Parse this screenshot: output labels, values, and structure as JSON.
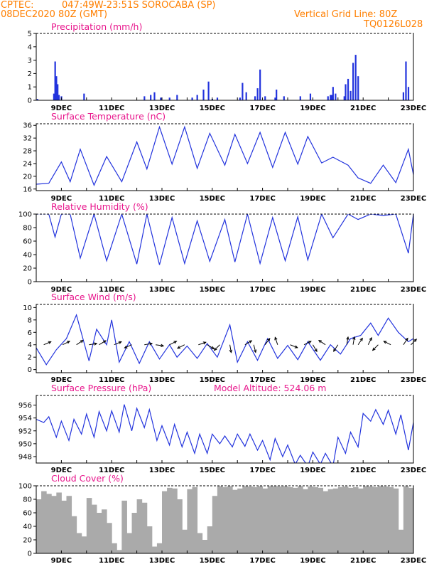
{
  "header": {
    "source": "CPTEC:",
    "location": "047:49W-23:51S   SOROCABA (SP)",
    "run": "08DEC2020 80Z (GMT)",
    "grid_line": "Vertical Grid Line: 80Z",
    "code": "TQ0126L028"
  },
  "x_axis": {
    "labels": [
      "9DEC",
      "11DEC",
      "13DEC",
      "15DEC",
      "17DEC",
      "19DEC",
      "21DEC",
      "23DEC"
    ],
    "label_days": [
      9,
      11,
      13,
      15,
      17,
      19,
      21,
      23
    ],
    "range_days": [
      8.0,
      23.0
    ]
  },
  "colors": {
    "series": "#2233dd",
    "title": "#e8168c",
    "header": "#ff7f00",
    "cloud": "#aaaaaa",
    "wind_arrow": "#000000"
  },
  "chart_data": [
    {
      "type": "bar",
      "title": "Precipitation (mm/h)",
      "ylim": [
        0,
        5
      ],
      "yticks": [
        0,
        1,
        2,
        3,
        4,
        5
      ],
      "x_unit": "day of December 2020",
      "x": [
        8.05,
        8.7,
        8.75,
        8.8,
        8.85,
        8.9,
        9.0,
        9.9,
        12.3,
        12.55,
        12.7,
        12.95,
        13.3,
        13.6,
        14.2,
        14.4,
        14.65,
        14.85,
        15.0,
        15.2,
        16.1,
        16.2,
        16.35,
        16.7,
        16.8,
        16.9,
        17.1,
        17.5,
        17.55,
        17.85,
        18.5,
        18.9,
        19.6,
        19.7,
        19.75,
        19.8,
        19.9,
        20.25,
        20.3,
        20.4,
        20.5,
        20.6,
        20.7,
        20.8,
        22.6,
        22.7,
        22.8
      ],
      "values": [
        0.1,
        0.5,
        2.9,
        1.8,
        1.2,
        0.4,
        0.3,
        0.5,
        0.3,
        0.4,
        0.6,
        0.2,
        0.2,
        0.4,
        0.2,
        0.4,
        0.8,
        1.4,
        0.1,
        0.2,
        0.2,
        1.3,
        0.6,
        0.3,
        0.9,
        2.3,
        0.3,
        0.2,
        0.8,
        0.3,
        0.3,
        0.5,
        0.3,
        0.4,
        0.4,
        1.0,
        0.5,
        0.3,
        1.2,
        1.6,
        0.7,
        2.8,
        3.4,
        1.8,
        0.6,
        2.9,
        1.0
      ]
    },
    {
      "type": "line",
      "title": "Surface Temperature (nC)",
      "ylim": [
        15.5,
        36.5
      ],
      "yticks": [
        16,
        20,
        24,
        28,
        32,
        36
      ],
      "x_unit": "day of December 2020",
      "x": [
        8.0,
        8.5,
        9.0,
        9.35,
        9.75,
        10.3,
        10.8,
        11.4,
        12.0,
        12.4,
        12.9,
        13.4,
        13.9,
        14.4,
        14.9,
        15.5,
        15.9,
        16.4,
        16.9,
        17.4,
        17.9,
        18.4,
        18.8,
        19.35,
        19.8,
        20.4,
        20.8,
        21.3,
        21.8,
        22.3,
        22.8,
        23.0
      ],
      "values": [
        17.5,
        17.8,
        24.5,
        18.3,
        28.5,
        17.2,
        26.2,
        18.3,
        30.8,
        22.3,
        35.5,
        23.8,
        35.5,
        22.5,
        33.5,
        23.5,
        33.2,
        24.0,
        33.8,
        22.8,
        33.8,
        23.8,
        32.5,
        24.2,
        26.0,
        23.5,
        19.5,
        17.8,
        23.5,
        18.0,
        28.5,
        20.5
      ]
    },
    {
      "type": "line",
      "title": "Relative Humidity (%)",
      "ylim": [
        0,
        100
      ],
      "yticks": [
        0,
        20,
        40,
        60,
        80,
        100
      ],
      "x_unit": "day of December 2020",
      "x": [
        8.0,
        8.5,
        8.75,
        9.0,
        9.35,
        9.75,
        10.3,
        10.8,
        11.4,
        12.0,
        12.4,
        12.9,
        13.4,
        13.9,
        14.4,
        14.9,
        15.5,
        15.9,
        16.4,
        16.9,
        17.4,
        17.9,
        18.4,
        18.8,
        19.35,
        19.8,
        20.4,
        20.8,
        21.3,
        21.8,
        22.3,
        22.8,
        23.0
      ],
      "values": [
        100,
        100,
        66,
        100,
        100,
        35,
        100,
        31,
        100,
        26,
        100,
        25,
        95,
        27,
        90,
        30,
        92,
        29,
        100,
        27,
        95,
        31,
        96,
        32,
        100,
        65,
        100,
        92,
        100,
        98,
        100,
        42,
        100
      ]
    },
    {
      "type": "line",
      "title": "Surface Wind (m/s)",
      "ylim": [
        -0.5,
        10.5
      ],
      "yticks": [
        0,
        2,
        4,
        6,
        8,
        10
      ],
      "x_unit": "day of December 2020",
      "x": [
        8.0,
        8.4,
        8.8,
        9.2,
        9.6,
        10.1,
        10.4,
        10.8,
        11.0,
        11.3,
        11.7,
        12.1,
        12.5,
        12.9,
        13.3,
        13.6,
        14.0,
        14.4,
        14.8,
        15.2,
        15.7,
        16.0,
        16.4,
        16.8,
        17.2,
        17.6,
        18.0,
        18.4,
        18.8,
        19.3,
        19.7,
        20.1,
        20.5,
        20.9,
        21.3,
        21.6,
        22.0,
        22.4,
        22.8,
        23.0
      ],
      "values": [
        3.5,
        0.8,
        3.2,
        5.0,
        8.8,
        1.4,
        6.5,
        4.0,
        8.0,
        1.2,
        4.5,
        1.0,
        4.5,
        1.7,
        4.0,
        2.0,
        3.8,
        1.8,
        4.2,
        2.0,
        7.2,
        1.2,
        4.5,
        1.5,
        5.0,
        1.8,
        3.9,
        1.6,
        4.5,
        1.5,
        4.0,
        2.5,
        5.0,
        5.5,
        7.5,
        5.5,
        8.3,
        6.0,
        4.5,
        5.0
      ],
      "arrow_x": [
        8.3,
        9.05,
        9.6,
        10.1,
        10.5,
        11.1,
        11.8,
        12.3,
        12.75,
        13.3,
        13.9,
        14.45,
        14.8,
        15.3,
        15.7,
        16.3,
        16.65,
        17.1,
        17.6,
        18.1,
        18.65,
        19.0,
        19.5,
        20.0,
        20.35,
        20.6,
        20.8,
        21.2,
        21.6,
        22.1,
        22.6,
        22.9
      ],
      "arrow_dx": [
        3.5,
        3.0,
        3.0,
        3.2,
        2.5,
        3.5,
        -3.5,
        3.0,
        3.5,
        3.0,
        -3.0,
        3.0,
        2.5,
        -2.0,
        0.5,
        2.5,
        0.5,
        1.5,
        -1.0,
        2.5,
        3.0,
        1.5,
        -1.5,
        -1.0,
        0.5,
        0.5,
        2.0,
        1.0,
        -2.0,
        -3.0,
        2.0,
        1.5
      ],
      "arrow_dy": [
        1.5,
        1.5,
        2.0,
        0.5,
        1.5,
        1.5,
        -1.5,
        0.5,
        -0.5,
        1.5,
        -1.5,
        1.0,
        -1.5,
        -2.0,
        -3.0,
        1.5,
        -2.0,
        2.0,
        3.0,
        -1.0,
        1.5,
        -2.5,
        1.0,
        -1.5,
        3.0,
        3.0,
        3.0,
        2.0,
        -2.0,
        1.5,
        3.0,
        1.5
      ]
    },
    {
      "type": "line",
      "title": "Surface Pressure (hPa)",
      "annotation": "Model Altitude: 524.06 m",
      "ylim": [
        947,
        957.5
      ],
      "yticks": [
        948,
        950,
        952,
        954,
        956
      ],
      "x_unit": "day of December 2020",
      "x": [
        8.0,
        8.3,
        8.5,
        8.8,
        9.0,
        9.3,
        9.5,
        9.8,
        10.0,
        10.3,
        10.5,
        10.8,
        11.0,
        11.3,
        11.5,
        11.8,
        12.0,
        12.3,
        12.5,
        12.8,
        13.0,
        13.3,
        13.5,
        13.8,
        14.0,
        14.3,
        14.5,
        14.8,
        15.0,
        15.3,
        15.5,
        15.8,
        16.0,
        16.3,
        16.5,
        16.8,
        17.0,
        17.3,
        17.5,
        17.8,
        18.0,
        18.3,
        18.5,
        18.8,
        19.0,
        19.3,
        19.5,
        19.8,
        20.0,
        20.3,
        20.5,
        20.8,
        21.0,
        21.3,
        21.5,
        21.8,
        22.0,
        22.3,
        22.5,
        22.8,
        23.0
      ],
      "values": [
        953.8,
        953.3,
        954.2,
        951.0,
        953.5,
        950.5,
        953.8,
        951.5,
        954.6,
        951.0,
        955.0,
        952.0,
        955.1,
        951.8,
        956.1,
        952.0,
        955.5,
        952.5,
        955.3,
        950.5,
        952.8,
        949.8,
        953.0,
        949.5,
        951.8,
        948.5,
        951.5,
        948.5,
        951.5,
        950.0,
        951.2,
        949.5,
        951.5,
        949.6,
        951.5,
        949.0,
        950.5,
        947.5,
        950.8,
        948.0,
        949.8,
        946.8,
        948.2,
        946.5,
        948.7,
        946.8,
        948.5,
        946.5,
        951.0,
        948.5,
        951.8,
        949.5,
        954.7,
        953.5,
        955.3,
        953.0,
        955.2,
        951.5,
        954.5,
        949.0,
        953.3
      ]
    },
    {
      "type": "area",
      "title": "Cloud Cover (%)",
      "ylim": [
        0,
        100
      ],
      "yticks": [
        0,
        20,
        40,
        60,
        80,
        100
      ],
      "x_unit": "day of December 2020",
      "x": [
        8.0,
        8.2,
        8.4,
        8.6,
        8.8,
        9.0,
        9.2,
        9.4,
        9.6,
        9.8,
        10.0,
        10.2,
        10.4,
        10.6,
        10.8,
        11.0,
        11.2,
        11.4,
        11.6,
        11.8,
        12.0,
        12.2,
        12.4,
        12.6,
        12.8,
        13.0,
        13.2,
        13.4,
        13.6,
        13.8,
        14.0,
        14.2,
        14.4,
        14.6,
        14.8,
        15.0,
        15.2,
        15.4,
        15.6,
        15.8,
        16.0,
        16.2,
        16.4,
        16.6,
        16.8,
        17.0,
        17.2,
        17.4,
        17.6,
        17.8,
        18.0,
        18.2,
        18.4,
        18.6,
        18.8,
        19.0,
        19.2,
        19.4,
        19.6,
        19.8,
        20.0,
        20.2,
        20.4,
        20.6,
        20.8,
        21.0,
        21.2,
        21.4,
        21.6,
        21.8,
        22.0,
        22.2,
        22.4,
        22.6,
        22.8,
        23.0
      ],
      "values": [
        80,
        92,
        88,
        85,
        90,
        78,
        85,
        55,
        30,
        25,
        82,
        72,
        60,
        65,
        45,
        15,
        5,
        78,
        30,
        60,
        80,
        75,
        40,
        10,
        15,
        92,
        97,
        96,
        80,
        35,
        95,
        98,
        30,
        20,
        40,
        85,
        100,
        98,
        100,
        94,
        96,
        100,
        99,
        98,
        100,
        96,
        100,
        100,
        99,
        100,
        98,
        97,
        100,
        95,
        99,
        98,
        97,
        92,
        95,
        96,
        98,
        99,
        97,
        98,
        96,
        100,
        99,
        98,
        100,
        99,
        98,
        96,
        35,
        100,
        97,
        95
      ]
    }
  ]
}
